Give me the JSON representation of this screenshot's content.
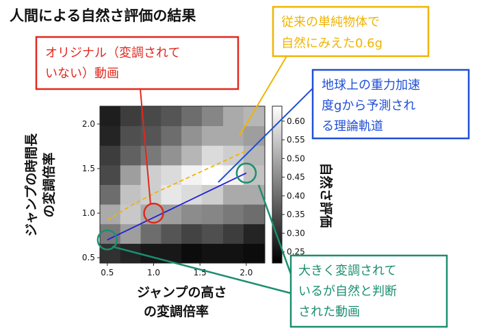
{
  "chart_data": {
    "type": "heatmap",
    "title": "人間による自然さ評価の結果",
    "xlabel_lines": [
      "ジャンプの高さ",
      "の変調倍率"
    ],
    "ylabel_lines": [
      "ジャンプの時間長",
      "の変調倍率"
    ],
    "colorbar_label": "自然さ評価",
    "xlim": [
      0.42,
      2.2
    ],
    "ylim": [
      0.44,
      2.2
    ],
    "x_ticks": [
      {
        "v": 0.5,
        "label": "0.5"
      },
      {
        "v": 1.0,
        "label": "1.0"
      },
      {
        "v": 1.5,
        "label": "1.5"
      },
      {
        "v": 2.0,
        "label": "2.0"
      }
    ],
    "y_ticks": [
      {
        "v": 0.5,
        "label": "0.5"
      },
      {
        "v": 1.0,
        "label": "1.0"
      },
      {
        "v": 1.5,
        "label": "1.5"
      },
      {
        "v": 2.0,
        "label": "2.0"
      }
    ],
    "colorbar_range": [
      0.22,
      0.64
    ],
    "colorbar_ticks": [
      {
        "v": 0.25,
        "label": "0.25"
      },
      {
        "v": 0.3,
        "label": "0.30"
      },
      {
        "v": 0.35,
        "label": "0.35"
      },
      {
        "v": 0.4,
        "label": "0.40"
      },
      {
        "v": 0.45,
        "label": "0.45"
      },
      {
        "v": 0.5,
        "label": "0.50"
      },
      {
        "v": 0.55,
        "label": "0.55"
      },
      {
        "v": 0.6,
        "label": "0.60"
      }
    ],
    "x_edges": [
      0.42,
      0.64,
      0.86,
      1.08,
      1.3,
      1.52,
      1.75,
      1.97,
      2.2
    ],
    "y_edges": [
      0.44,
      0.66,
      0.88,
      1.1,
      1.32,
      1.54,
      1.76,
      1.98,
      2.2
    ],
    "grid": [
      [
        0.3,
        0.28,
        0.26,
        0.26,
        0.24,
        0.25,
        0.25,
        0.24
      ],
      [
        0.42,
        0.48,
        0.4,
        0.36,
        0.33,
        0.35,
        0.32,
        0.28
      ],
      [
        0.5,
        0.55,
        0.5,
        0.48,
        0.45,
        0.44,
        0.42,
        0.4
      ],
      [
        0.4,
        0.54,
        0.56,
        0.6,
        0.58,
        0.56,
        0.5,
        0.5
      ],
      [
        0.34,
        0.48,
        0.56,
        0.58,
        0.62,
        0.64,
        0.62,
        0.54
      ],
      [
        0.32,
        0.38,
        0.42,
        0.46,
        0.52,
        0.58,
        0.56,
        0.52
      ],
      [
        0.28,
        0.35,
        0.36,
        0.4,
        0.46,
        0.5,
        0.5,
        0.48
      ],
      [
        0.27,
        0.32,
        0.34,
        0.36,
        0.4,
        0.44,
        0.5,
        0.52
      ]
    ],
    "curves": [
      {
        "name": "theory",
        "color": "#1f1fd6",
        "dashed": false,
        "points": [
          [
            0.5,
            0.7
          ],
          [
            1.0,
            0.95
          ],
          [
            1.5,
            1.2
          ],
          [
            2.0,
            1.45
          ]
        ]
      },
      {
        "name": "previous",
        "color": "#f0b400",
        "dashed": true,
        "points": [
          [
            0.5,
            0.92
          ],
          [
            0.75,
            1.08
          ],
          [
            1.0,
            1.22
          ],
          [
            1.25,
            1.34
          ],
          [
            1.5,
            1.46
          ],
          [
            1.75,
            1.58
          ],
          [
            2.0,
            1.7
          ]
        ]
      }
    ],
    "markers": [
      {
        "name": "original",
        "x": 1.0,
        "y": 1.0,
        "color": "#e0281e"
      },
      {
        "name": "natural-low",
        "x": 0.5,
        "y": 0.7,
        "color": "#1a8f6e"
      },
      {
        "name": "natural-high",
        "x": 2.0,
        "y": 1.45,
        "color": "#1a8f6e"
      }
    ]
  },
  "callouts": {
    "original": {
      "lines": [
        "オリジナル（変調されて",
        "いない）動画"
      ],
      "color": "#e0281e"
    },
    "previous": {
      "lines": [
        "従来の単純物体で",
        "自然にみえた0.6g"
      ],
      "color": "#f0b400"
    },
    "theory": {
      "lines": [
        "地球上の重力加速",
        "度gから予測され",
        "る理論軌道"
      ],
      "color": "#1f4fd6"
    },
    "natural": {
      "lines": [
        "大きく変調されて",
        "いるが自然と判断",
        "された動画"
      ],
      "color": "#1a8f6e"
    }
  }
}
